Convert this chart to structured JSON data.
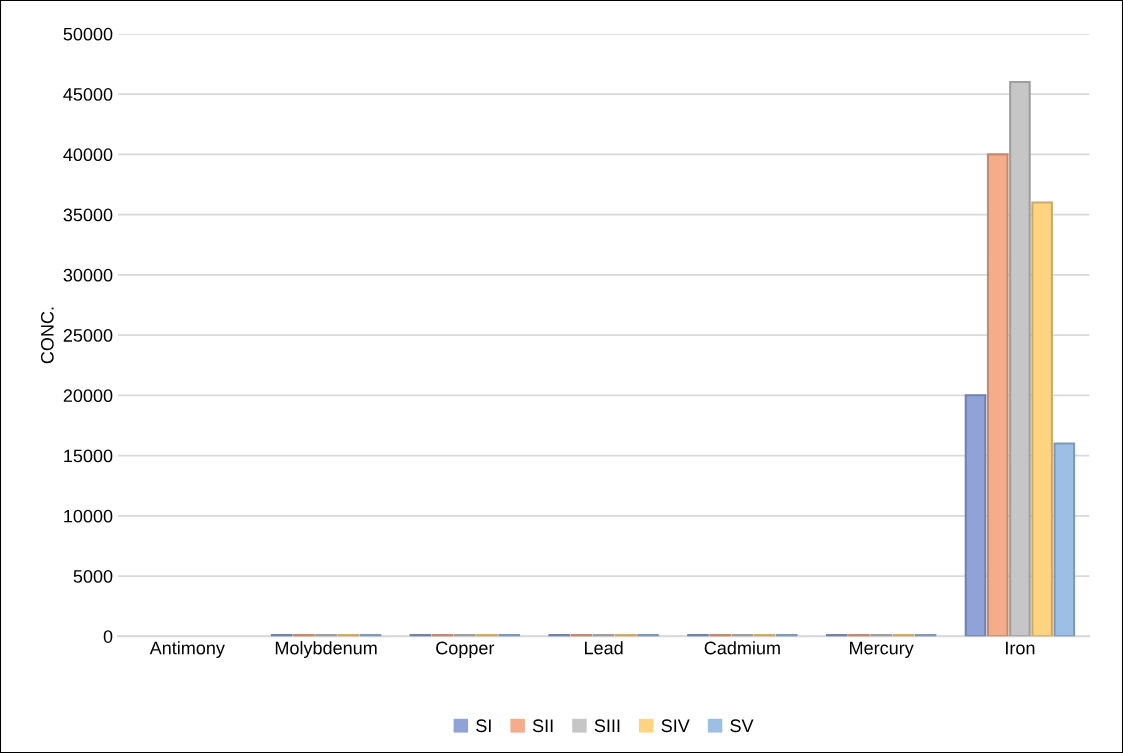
{
  "chart_data": {
    "type": "bar",
    "ylabel": "CONC.",
    "categories": [
      "Antimony",
      "Molybdenum",
      "Copper",
      "Lead",
      "Cadmium",
      "Mercury",
      "Iron"
    ],
    "series": [
      {
        "name": "SI",
        "color": "#8fa3d8",
        "values": [
          0,
          100,
          100,
          100,
          100,
          100,
          20000
        ]
      },
      {
        "name": "SII",
        "color": "#f5ac8a",
        "values": [
          0,
          100,
          100,
          100,
          100,
          100,
          40000
        ]
      },
      {
        "name": "SIII",
        "color": "#c6c6c6",
        "values": [
          0,
          100,
          100,
          100,
          100,
          100,
          46000
        ]
      },
      {
        "name": "SIV",
        "color": "#fed480",
        "values": [
          0,
          100,
          100,
          100,
          100,
          100,
          36000
        ]
      },
      {
        "name": "SV",
        "color": "#9dbfe5",
        "values": [
          0,
          100,
          100,
          100,
          100,
          100,
          16000
        ]
      }
    ],
    "ylim": [
      0,
      50000
    ],
    "yticks": [
      0,
      5000,
      10000,
      15000,
      20000,
      25000,
      30000,
      35000,
      40000,
      45000,
      50000
    ],
    "grid": "y",
    "legend": "bottom"
  }
}
